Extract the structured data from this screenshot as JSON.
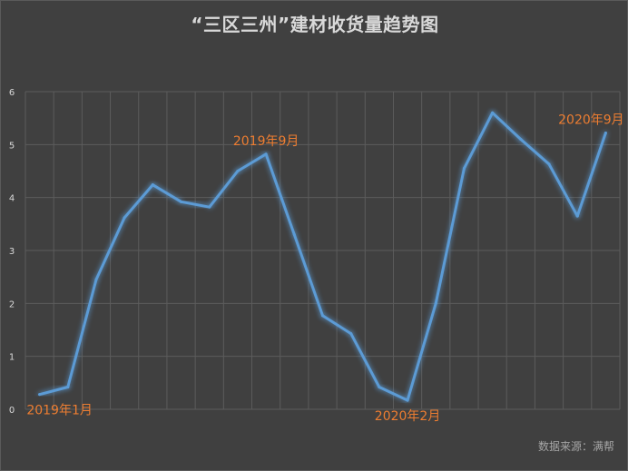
{
  "chart_data": {
    "type": "line",
    "title": "“三区三州”建材收货量趋势图",
    "source": "数据来源：满帮",
    "ylim": [
      0,
      6
    ],
    "yticks": [
      "0",
      "1",
      "2",
      "3",
      "4",
      "5",
      "6"
    ],
    "grid": true,
    "series": [
      {
        "values": [
          0.28,
          0.42,
          2.45,
          3.62,
          4.24,
          3.92,
          3.82,
          4.5,
          4.82,
          3.3,
          1.77,
          1.43,
          0.42,
          0.17,
          2.0,
          4.55,
          5.6,
          5.1,
          4.63,
          3.65,
          5.22
        ]
      }
    ],
    "annotations": [
      {
        "index": 0,
        "text": "2019年1月"
      },
      {
        "index": 8,
        "text": "2019年9月"
      },
      {
        "index": 13,
        "text": "2020年2月"
      },
      {
        "index": 20,
        "text": "2020年9月"
      }
    ],
    "colors": {
      "line": "#5b9bd5",
      "annotation": "#ed7d31",
      "grid": "#5c5c5c",
      "text": "#d9d9d9"
    }
  }
}
